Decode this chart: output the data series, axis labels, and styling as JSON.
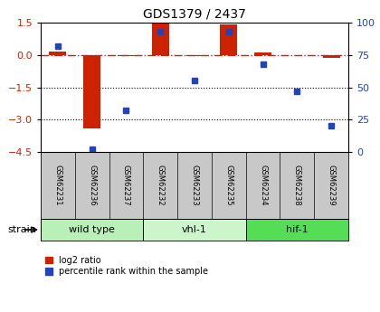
{
  "title": "GDS1379 / 2437",
  "samples": [
    "GSM62231",
    "GSM62236",
    "GSM62237",
    "GSM62232",
    "GSM62233",
    "GSM62235",
    "GSM62234",
    "GSM62238",
    "GSM62239"
  ],
  "log2_ratio": [
    0.15,
    -3.4,
    -0.07,
    1.45,
    -0.05,
    1.4,
    0.12,
    -0.03,
    -0.15
  ],
  "percentile_rank": [
    82,
    2,
    32,
    93,
    55,
    93,
    68,
    47,
    20
  ],
  "groups": [
    {
      "label": "wild type",
      "start": 0,
      "end": 3,
      "color": "#b8f0b8"
    },
    {
      "label": "vhl-1",
      "start": 3,
      "end": 6,
      "color": "#ccf5cc"
    },
    {
      "label": "hif-1",
      "start": 6,
      "end": 9,
      "color": "#55dd55"
    }
  ],
  "ylim_left": [
    -4.5,
    1.5
  ],
  "ylim_right": [
    0,
    100
  ],
  "yticks_left": [
    1.5,
    0,
    -1.5,
    -3,
    -4.5
  ],
  "yticks_right": [
    100,
    75,
    50,
    25,
    0
  ],
  "bar_color": "#cc2200",
  "dot_color": "#2244bb",
  "hline_color": "#cc2200",
  "dotted_lines": [
    -1.5,
    -3
  ],
  "bg_color": "#ffffff",
  "sample_bg": "#c8c8c8",
  "label_log2": "log2 ratio",
  "label_pct": "percentile rank within the sample",
  "strain_label": "strain"
}
